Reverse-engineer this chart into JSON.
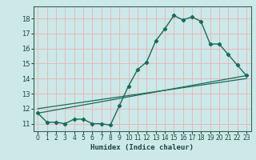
{
  "title": "",
  "xlabel": "Humidex (Indice chaleur)",
  "ylabel": "",
  "xlim": [
    -0.5,
    23.5
  ],
  "ylim": [
    10.5,
    18.8
  ],
  "xticks": [
    0,
    1,
    2,
    3,
    4,
    5,
    6,
    7,
    8,
    9,
    10,
    11,
    12,
    13,
    14,
    15,
    16,
    17,
    18,
    19,
    20,
    21,
    22,
    23
  ],
  "yticks": [
    11,
    12,
    13,
    14,
    15,
    16,
    17,
    18
  ],
  "bg_color": "#cce8e8",
  "grid_color": "#e8b8b8",
  "line_color": "#1a6b5a",
  "line1_x": [
    0,
    1,
    2,
    3,
    4,
    5,
    6,
    7,
    8,
    9,
    10,
    11,
    12,
    13,
    14,
    15,
    16,
    17,
    18,
    19,
    20,
    21,
    22,
    23
  ],
  "line1_y": [
    11.7,
    11.1,
    11.1,
    11.0,
    11.3,
    11.3,
    11.0,
    11.0,
    10.9,
    12.2,
    13.5,
    14.6,
    15.1,
    16.5,
    17.3,
    18.2,
    17.9,
    18.1,
    17.8,
    16.3,
    16.3,
    15.6,
    14.9,
    14.2
  ],
  "line2_x": [
    0,
    23
  ],
  "line2_y": [
    11.7,
    14.2
  ],
  "line3_x": [
    0,
    23
  ],
  "line3_y": [
    12.0,
    14.0
  ]
}
